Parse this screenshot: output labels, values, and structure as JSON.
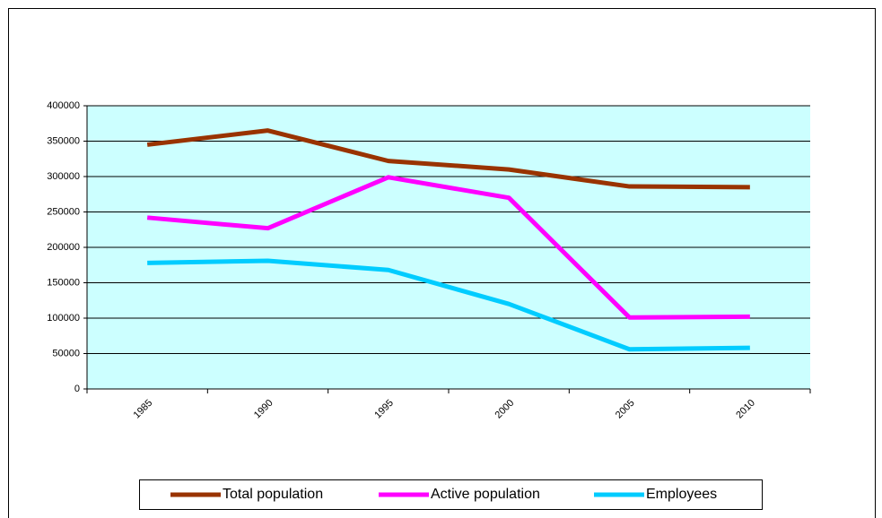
{
  "chart_data": {
    "type": "line",
    "categories": [
      "1985",
      "1990",
      "1995",
      "2000",
      "2005",
      "2010"
    ],
    "series": [
      {
        "name": "Total population",
        "color": "#993300",
        "values": [
          345000,
          365000,
          322000,
          310000,
          286000,
          285000
        ]
      },
      {
        "name": "Active population",
        "color": "#ff00ff",
        "values": [
          242000,
          227000,
          299000,
          270000,
          101000,
          102000
        ]
      },
      {
        "name": "Employees",
        "color": "#00ccff",
        "values": [
          178000,
          181000,
          168000,
          120000,
          56000,
          58000
        ]
      }
    ],
    "ylim": [
      0,
      400000
    ],
    "yticks": [
      0,
      50000,
      100000,
      150000,
      200000,
      250000,
      300000,
      350000,
      400000
    ],
    "grid": true,
    "plot_background": "#ccffff",
    "legend": "bottom"
  }
}
